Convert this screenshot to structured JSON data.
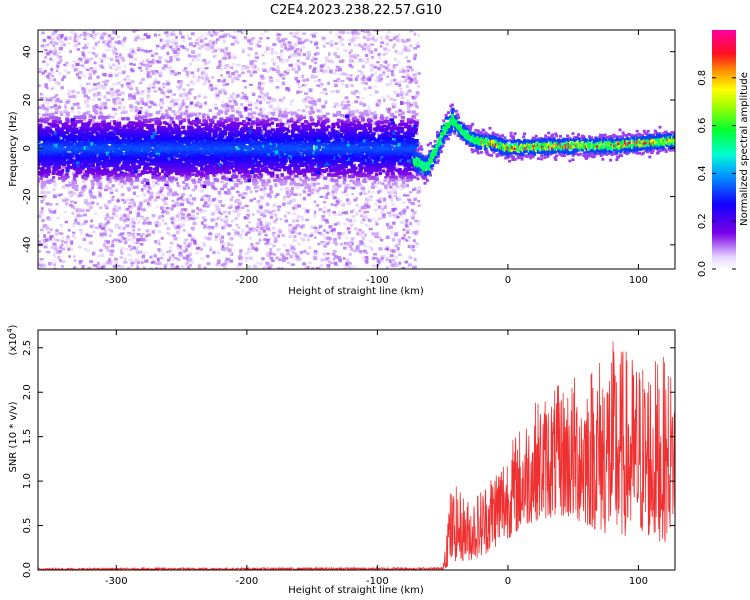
{
  "title": "C2E4.2023.238.22.57.G10",
  "chart_data": [
    {
      "type": "heatmap",
      "xlabel": "Height of straight line (km)",
      "ylabel": "Frequency (Hz)",
      "xlim": [
        -360,
        128
      ],
      "ylim": [
        -50,
        49
      ],
      "xticks": [
        -300,
        -200,
        -100,
        0,
        100
      ],
      "yticks": [
        -40,
        -20,
        0,
        20,
        40
      ],
      "colorbar": {
        "label": "Normalized spectral amplitude",
        "range": [
          0.0,
          1.0
        ],
        "ticks": [
          "0.0",
          "0.2",
          "0.4",
          "0.6",
          "0.8"
        ],
        "tick_values": [
          0.0,
          0.2,
          0.4,
          0.6,
          0.8
        ]
      },
      "features": {
        "noise_region_end_km": -72,
        "noise_band_center_hz": 0,
        "noise_band_halfwidth_hz": 12,
        "ridge": [
          {
            "x": -72,
            "y": -5
          },
          {
            "x": -62,
            "y": -8
          },
          {
            "x": -55,
            "y": -1
          },
          {
            "x": -48,
            "y": 8
          },
          {
            "x": -42,
            "y": 12
          },
          {
            "x": -35,
            "y": 7
          },
          {
            "x": -25,
            "y": 3
          },
          {
            "x": -10,
            "y": 2
          },
          {
            "x": 0,
            "y": 0
          },
          {
            "x": 20,
            "y": 0.5
          },
          {
            "x": 40,
            "y": 1
          },
          {
            "x": 60,
            "y": 1
          },
          {
            "x": 80,
            "y": 1
          },
          {
            "x": 100,
            "y": 2
          },
          {
            "x": 128,
            "y": 3
          }
        ]
      }
    },
    {
      "type": "line",
      "xlabel": "Height of straight line (km)",
      "ylabel": "SNR (10 * v/v)",
      "yscale_label": "(x10",
      "yscale_exp": "4",
      "yscale_close": ")",
      "xlim": [
        -360,
        128
      ],
      "ylim": [
        0,
        2.7
      ],
      "xticks": [
        -300,
        -200,
        -100,
        0,
        100
      ],
      "yticks": [
        "0.0",
        "0.5",
        "1.0",
        "1.5",
        "2.0",
        "2.5"
      ],
      "ytick_values": [
        0,
        0.5,
        1.0,
        1.5,
        2.0,
        2.5
      ],
      "color": "#f03030",
      "envelope": [
        {
          "x": -360,
          "lo": 0.0,
          "hi": 0.02
        },
        {
          "x": -50,
          "lo": 0.0,
          "hi": 0.03
        },
        {
          "x": -45,
          "lo": 0.05,
          "hi": 0.9
        },
        {
          "x": -40,
          "lo": 0.1,
          "hi": 0.95
        },
        {
          "x": -30,
          "lo": 0.1,
          "hi": 0.8
        },
        {
          "x": -20,
          "lo": 0.15,
          "hi": 0.95
        },
        {
          "x": -10,
          "lo": 0.25,
          "hi": 1.2
        },
        {
          "x": 0,
          "lo": 0.35,
          "hi": 1.4
        },
        {
          "x": 20,
          "lo": 0.55,
          "hi": 1.9
        },
        {
          "x": 40,
          "lo": 0.6,
          "hi": 2.1
        },
        {
          "x": 60,
          "lo": 0.5,
          "hi": 2.3
        },
        {
          "x": 80,
          "lo": 0.35,
          "hi": 2.6
        },
        {
          "x": 100,
          "lo": 0.4,
          "hi": 2.4
        },
        {
          "x": 120,
          "lo": 0.3,
          "hi": 2.4
        },
        {
          "x": 128,
          "lo": 0.6,
          "hi": 2.2
        }
      ]
    }
  ]
}
